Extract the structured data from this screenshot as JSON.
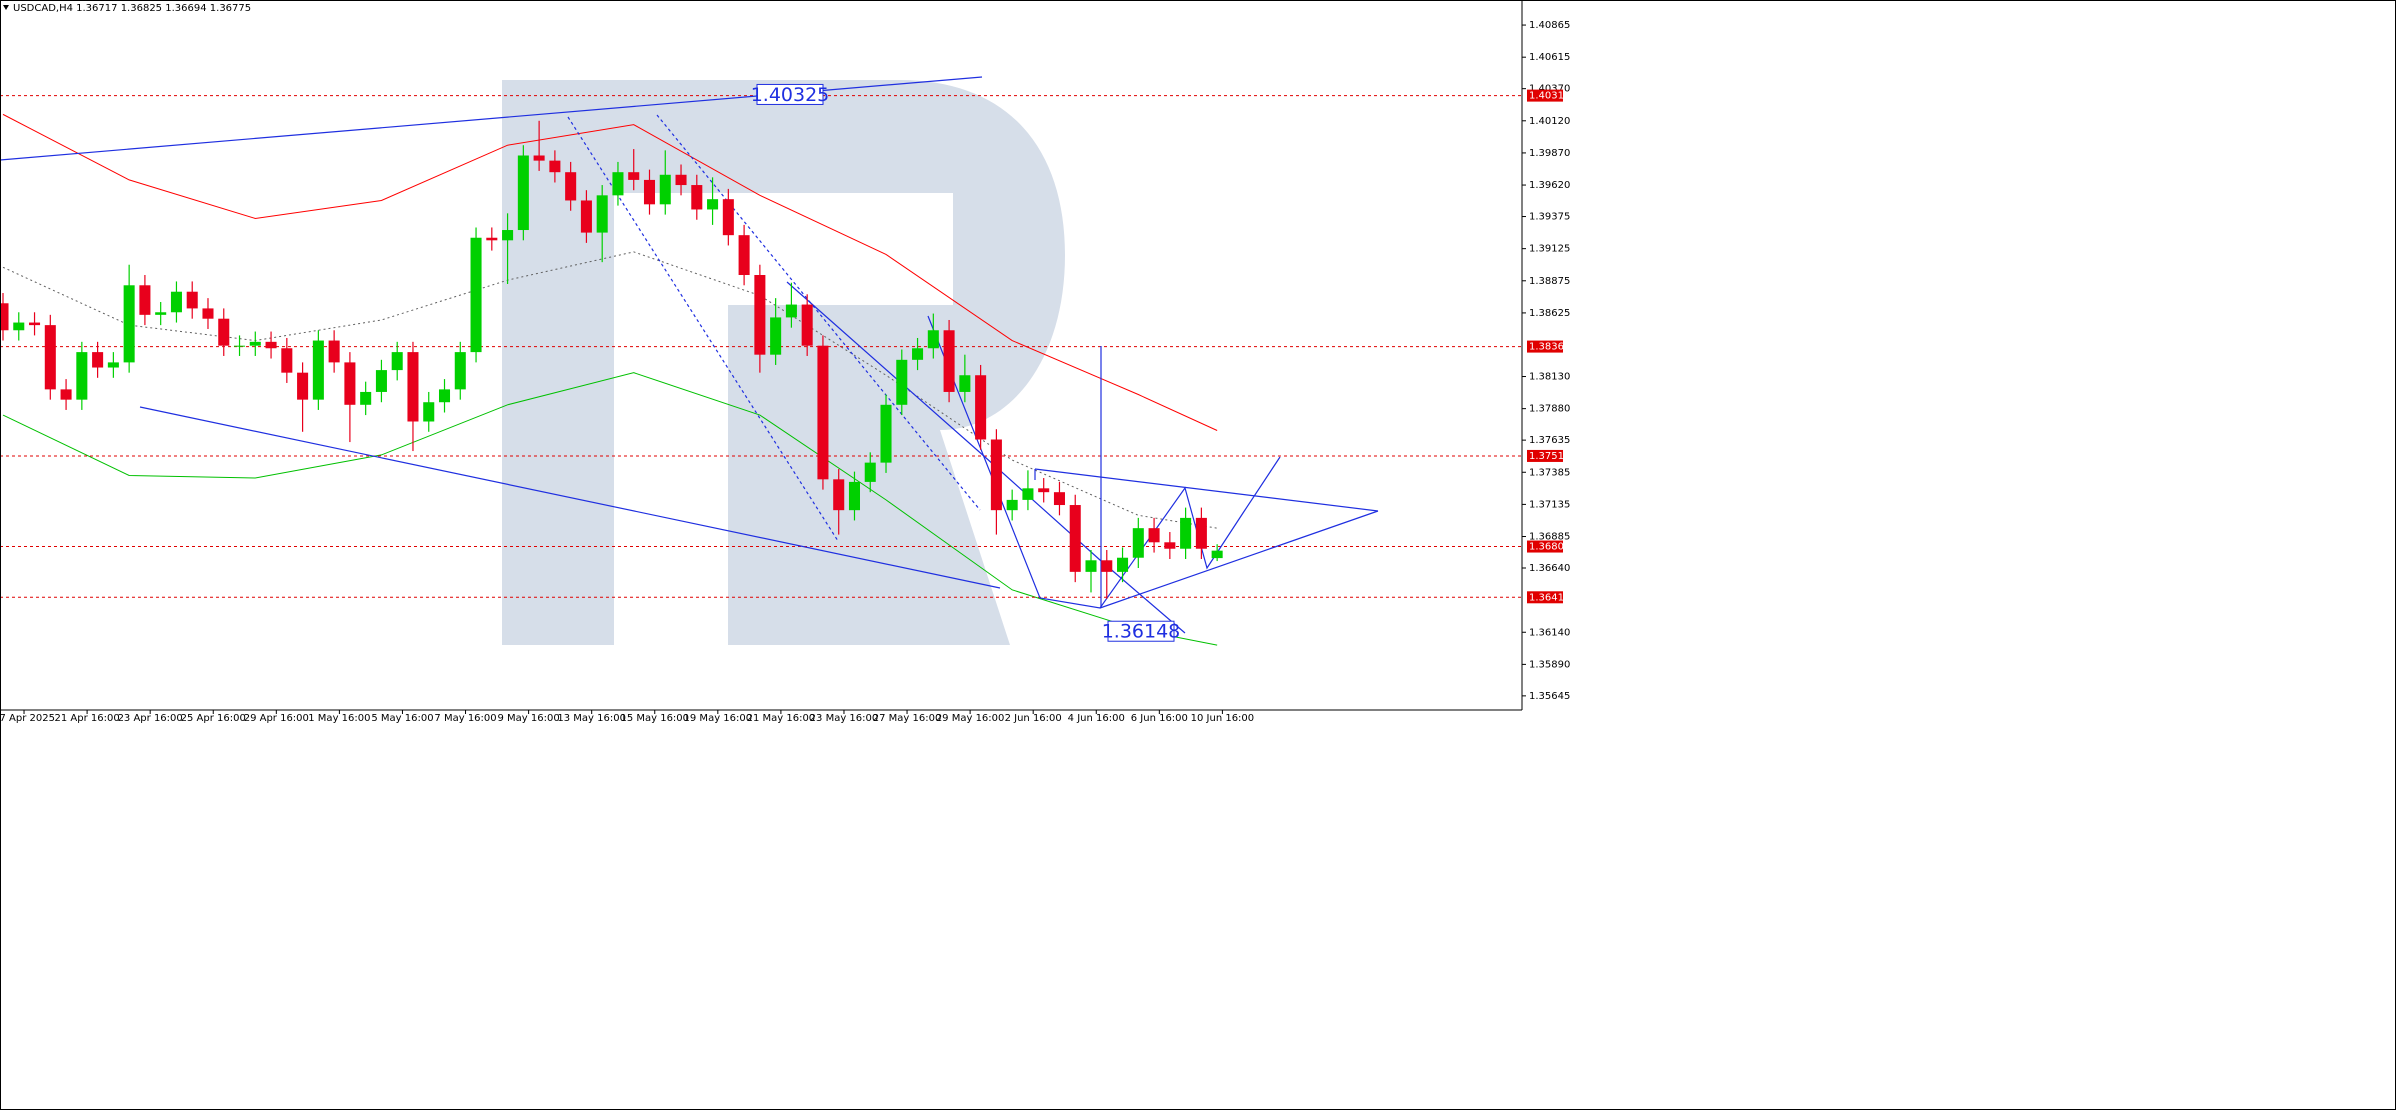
{
  "chart_data": {
    "type": "candlestick",
    "symbol": "USDCAD,H4",
    "header_values": [
      1.36717,
      1.36825,
      1.36694,
      1.36775
    ],
    "up_color": "#00d000",
    "down_color": "#e8001c",
    "x": [
      0,
      3,
      6,
      9,
      12,
      15,
      18,
      21,
      24,
      27,
      30,
      33,
      36,
      39,
      42,
      45,
      48,
      51,
      54,
      57,
      60,
      63,
      66,
      69,
      72,
      75,
      78,
      81,
      84,
      87,
      90,
      93,
      96,
      99,
      102,
      105,
      108,
      111,
      114,
      117,
      120,
      123,
      126,
      129,
      132,
      135,
      138,
      141,
      144,
      147,
      150,
      153,
      156,
      159,
      162,
      165,
      168,
      171,
      174,
      177,
      180,
      183,
      186,
      189,
      192,
      195,
      198,
      201,
      204,
      207,
      210,
      213,
      216,
      219,
      222,
      225,
      228,
      231
    ],
    "open": [
      1.387,
      1.3849,
      1.3855,
      1.3853,
      1.3803,
      1.3795,
      1.3832,
      1.382,
      1.3824,
      1.3884,
      1.3861,
      1.3863,
      1.3879,
      1.3866,
      1.3858,
      1.3837,
      1.3837,
      1.384,
      1.3835,
      1.3816,
      1.3795,
      1.3841,
      1.3824,
      1.3791,
      1.3801,
      1.3818,
      1.3832,
      1.3778,
      1.3793,
      1.3803,
      1.3832,
      1.3921,
      1.3919,
      1.3927,
      1.3985,
      1.3981,
      1.3972,
      1.395,
      1.3925,
      1.3954,
      1.3972,
      1.3966,
      1.3947,
      1.397,
      1.3962,
      1.3943,
      1.3951,
      1.3923,
      1.3892,
      1.383,
      1.3859,
      1.3869,
      1.3837,
      1.3733,
      1.3709,
      1.3731,
      1.3746,
      1.3791,
      1.3826,
      1.3835,
      1.3849,
      1.3801,
      1.3814,
      1.3764,
      1.3709,
      1.3717,
      1.3726,
      1.3723,
      1.3713,
      1.3661,
      1.367,
      1.3661,
      1.3672,
      1.3695,
      1.3684,
      1.3679,
      1.3703,
      1.36717
    ],
    "high": [
      1.3878,
      1.3863,
      1.3863,
      1.3861,
      1.3811,
      1.384,
      1.384,
      1.3832,
      1.39,
      1.3892,
      1.3871,
      1.3887,
      1.3887,
      1.3874,
      1.3866,
      1.3845,
      1.3848,
      1.3848,
      1.3843,
      1.3824,
      1.3849,
      1.3849,
      1.3832,
      1.3809,
      1.3826,
      1.384,
      1.384,
      1.3801,
      1.3811,
      1.384,
      1.3929,
      1.3929,
      1.394,
      1.3993,
      1.4012,
      1.3989,
      1.398,
      1.3958,
      1.3962,
      1.398,
      1.399,
      1.3974,
      1.3989,
      1.3978,
      1.397,
      1.3968,
      1.3959,
      1.3931,
      1.39,
      1.3874,
      1.3886,
      1.3877,
      1.3845,
      1.3741,
      1.3739,
      1.3754,
      1.3799,
      1.3834,
      1.3843,
      1.3862,
      1.3857,
      1.383,
      1.3822,
      1.3772,
      1.3725,
      1.374,
      1.3734,
      1.3731,
      1.3721,
      1.3678,
      1.3678,
      1.368,
      1.3703,
      1.3703,
      1.3692,
      1.3711,
      1.3711,
      1.36825
    ],
    "low": [
      1.3841,
      1.3841,
      1.3845,
      1.3795,
      1.3787,
      1.3787,
      1.3812,
      1.3812,
      1.3816,
      1.3853,
      1.3853,
      1.3855,
      1.3858,
      1.385,
      1.3829,
      1.3829,
      1.3829,
      1.3827,
      1.3808,
      1.377,
      1.3787,
      1.3816,
      1.3762,
      1.3783,
      1.3793,
      1.381,
      1.3755,
      1.377,
      1.3785,
      1.3795,
      1.3824,
      1.3911,
      1.3885,
      1.3919,
      1.3973,
      1.3964,
      1.3942,
      1.3917,
      1.3902,
      1.3946,
      1.3958,
      1.3939,
      1.3939,
      1.3954,
      1.3935,
      1.3931,
      1.3915,
      1.3884,
      1.3816,
      1.3822,
      1.3851,
      1.3829,
      1.3725,
      1.369,
      1.3701,
      1.3723,
      1.3738,
      1.3783,
      1.3818,
      1.3827,
      1.3793,
      1.3793,
      1.3756,
      1.369,
      1.3701,
      1.3709,
      1.3715,
      1.3705,
      1.3653,
      1.3645,
      1.364,
      1.3653,
      1.3664,
      1.3676,
      1.3671,
      1.3671,
      1.3671,
      1.36694
    ],
    "close": [
      1.3849,
      1.3855,
      1.3853,
      1.3803,
      1.3795,
      1.3832,
      1.382,
      1.3824,
      1.3884,
      1.3861,
      1.3863,
      1.3879,
      1.3866,
      1.3858,
      1.3837,
      1.3837,
      1.384,
      1.3835,
      1.3816,
      1.3795,
      1.3841,
      1.3824,
      1.3791,
      1.3801,
      1.3818,
      1.3832,
      1.3778,
      1.3793,
      1.3803,
      1.3832,
      1.3921,
      1.3919,
      1.3927,
      1.3985,
      1.3981,
      1.3972,
      1.395,
      1.3925,
      1.3954,
      1.3972,
      1.3966,
      1.3947,
      1.397,
      1.3962,
      1.3943,
      1.3951,
      1.3923,
      1.3892,
      1.383,
      1.3859,
      1.3869,
      1.3837,
      1.3733,
      1.3709,
      1.3731,
      1.3746,
      1.3791,
      1.3826,
      1.3835,
      1.3849,
      1.3801,
      1.3814,
      1.3764,
      1.3709,
      1.3717,
      1.3726,
      1.3723,
      1.3713,
      1.3661,
      1.367,
      1.3661,
      1.3672,
      1.3695,
      1.3684,
      1.3679,
      1.3703,
      1.3679,
      1.36775
    ],
    "line_x": [
      0,
      24,
      48,
      72,
      96,
      120,
      144,
      168,
      192,
      216,
      231
    ],
    "lines": [
      {
        "color": "#ff0000",
        "style": "solid",
        "values": [
          1.4017,
          1.3966,
          1.3936,
          1.395,
          1.3993,
          1.4009,
          1.3954,
          1.3908,
          1.3841,
          1.3799,
          1.3771
        ]
      },
      {
        "color": "#00c000",
        "style": "solid",
        "values": [
          1.3783,
          1.3736,
          1.3734,
          1.3752,
          1.3791,
          1.3816,
          1.3783,
          1.3717,
          1.3647,
          1.3616,
          1.3604
        ]
      },
      {
        "color": "#606060",
        "style": "dotted",
        "values": [
          1.3898,
          1.3853,
          1.3841,
          1.3857,
          1.3888,
          1.391,
          1.3876,
          1.3814,
          1.3748,
          1.3705,
          1.3695
        ]
      }
    ],
    "levels": [
      1.40316,
      1.38363,
      1.37512,
      1.36807,
      1.36412
    ],
    "level_color": "#e00000",
    "targets": [
      1.40325,
      1.36148
    ],
    "xlim": [
      0,
      289
    ],
    "ylim": [
      1.35535,
      1.4106
    ],
    "xticks": [
      {
        "value": 4,
        "label": "17 Apr 2025"
      },
      {
        "value": 16,
        "label": "21 Apr 16:00"
      },
      {
        "value": 28,
        "label": "23 Apr 16:00"
      },
      {
        "value": 40,
        "label": "25 Apr 16:00"
      },
      {
        "value": 52,
        "label": "29 Apr 16:00"
      },
      {
        "value": 64,
        "label": "1 May 16:00"
      },
      {
        "value": 76,
        "label": "5 May 16:00"
      },
      {
        "value": 88,
        "label": "7 May 16:00"
      },
      {
        "value": 100,
        "label": "9 May 16:00"
      },
      {
        "value": 112,
        "label": "13 May 16:00"
      },
      {
        "value": 124,
        "label": "15 May 16:00"
      },
      {
        "value": 136,
        "label": "19 May 16:00"
      },
      {
        "value": 148,
        "label": "21 May 16:00"
      },
      {
        "value": 160,
        "label": "23 May 16:00"
      },
      {
        "value": 172,
        "label": "27 May 16:00"
      },
      {
        "value": 184,
        "label": "29 May 16:00"
      },
      {
        "value": 196,
        "label": "2 Jun 16:00"
      },
      {
        "value": 208,
        "label": "4 Jun 16:00"
      },
      {
        "value": 220,
        "label": "6 Jun 16:00"
      },
      {
        "value": 232,
        "label": "10 Jun 16:00"
      }
    ],
    "yticks": [
      1.40865,
      1.40615,
      {
        "value": 1.4037,
        "label": "1.40370"
      },
      {
        "value": 1.4012,
        "label": "1.40120"
      },
      {
        "value": 1.3987,
        "label": "1.39870"
      },
      {
        "value": 1.3962,
        "label": "1.39620"
      },
      1.39375,
      1.39125,
      1.38875,
      1.38625,
      {
        "value": 1.3813,
        "label": "1.38130"
      },
      {
        "value": 1.3788,
        "label": "1.37880"
      },
      1.37635,
      1.37385,
      1.37135,
      1.36885,
      {
        "value": 1.3664,
        "label": "1.36640"
      },
      {
        "value": 1.3614,
        "label": "1.36140"
      },
      {
        "value": 1.3589,
        "label": "1.35890"
      },
      1.35645
    ]
  }
}
